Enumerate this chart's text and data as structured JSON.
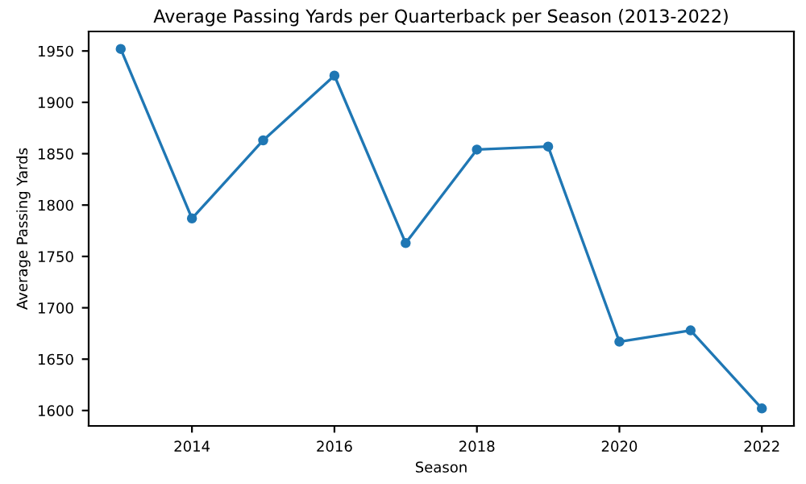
{
  "chart_data": {
    "type": "line",
    "title": "Average Passing Yards per Quarterback per Season (2013-2022)",
    "xlabel": "Season",
    "ylabel": "Average Passing Yards",
    "x": [
      2013,
      2014,
      2015,
      2016,
      2017,
      2018,
      2019,
      2020,
      2021,
      2022
    ],
    "series": [
      {
        "color": "#1f77b4",
        "values": [
          1952,
          1787,
          1863,
          1926,
          1763,
          1854,
          1857,
          1667,
          1678,
          1602
        ]
      }
    ],
    "xlim": [
      2012.55,
      2022.45
    ],
    "xticks": [
      2014,
      2016,
      2018,
      2020,
      2022
    ],
    "ylim": [
      1585,
      1969
    ],
    "yticks": [
      1600,
      1650,
      1700,
      1750,
      1800,
      1850,
      1900,
      1950
    ],
    "marker": "circle",
    "line_style": "solid",
    "grid": false,
    "legend": false
  }
}
